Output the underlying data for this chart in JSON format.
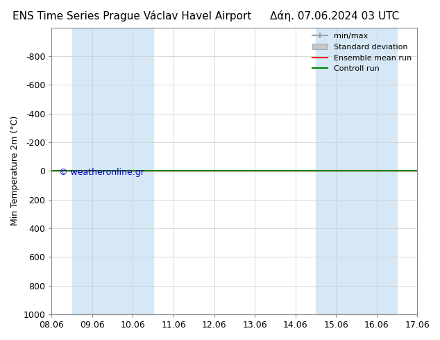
{
  "title_left": "ENS Time Series Prague Václav Havel Airport",
  "title_right": "Δάη. 07.06.2024 03 UTC",
  "ylabel": "Min Temperature 2m (°C)",
  "xlim": [
    0,
    9
  ],
  "ylim": [
    1000,
    -1000
  ],
  "yticks": [
    -800,
    -600,
    -400,
    -200,
    0,
    200,
    400,
    600,
    800,
    1000
  ],
  "xtick_labels": [
    "08.06",
    "09.06",
    "10.06",
    "11.06",
    "12.06",
    "13.06",
    "14.06",
    "15.06",
    "16.06",
    "17.06"
  ],
  "xtick_positions": [
    0,
    1,
    2,
    3,
    4,
    5,
    6,
    7,
    8,
    9
  ],
  "shaded_bands": [
    [
      0.5,
      1.5
    ],
    [
      1.5,
      2.5
    ],
    [
      6.5,
      7.5
    ],
    [
      7.5,
      8.5
    ]
  ],
  "band_color": "#d6e8f5",
  "control_run_y": 0,
  "control_run_color": "#008000",
  "ensemble_mean_color": "#ff0000",
  "watermark": "© weatheronline.gr",
  "watermark_color": "#0000cd",
  "bg_color": "#ffffff",
  "plot_bg_color": "#ffffff",
  "legend_entries": [
    "min/max",
    "Standard deviation",
    "Ensemble mean run",
    "Controll run"
  ],
  "legend_colors": [
    "#a0a0a0",
    "#c8c8c8",
    "#ff0000",
    "#008000"
  ],
  "title_fontsize": 11,
  "tick_fontsize": 9,
  "ylabel_fontsize": 9
}
